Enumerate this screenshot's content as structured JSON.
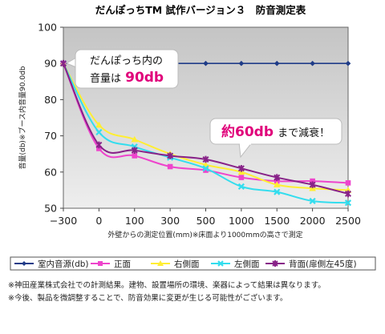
{
  "chart_data": {
    "type": "line",
    "title": "だんぽっちTM 試作バージョン３　防音測定表",
    "xlabel": "外壁からの測定位置(mm)※床面より1000mmの高さで測定",
    "ylabel": "音量(db)※ブース内音量90.0db",
    "categories": [
      "−300",
      "0",
      "100",
      "300",
      "500",
      "1000",
      "1500",
      "2000",
      "2500"
    ],
    "ylim": [
      50,
      100
    ],
    "yticks": [
      "50",
      "60",
      "70",
      "80",
      "90",
      "100"
    ],
    "grid": false,
    "legend_position": "bottom",
    "series": [
      {
        "name": "室内音源(db)",
        "color": "#1f3c88",
        "marker": "diamond",
        "values": [
          90,
          90,
          90,
          90,
          90,
          90,
          90,
          90,
          90
        ]
      },
      {
        "name": "正面",
        "color": "#ee44cc",
        "marker": "square",
        "values": [
          90,
          66.5,
          64.5,
          61.5,
          60.5,
          58.5,
          57.5,
          57.5,
          57
        ]
      },
      {
        "name": "右側面",
        "color": "#ffee33",
        "marker": "triangle",
        "values": [
          90,
          73,
          69,
          65,
          62,
          60,
          56.5,
          55.5,
          55
        ]
      },
      {
        "name": "左側面",
        "color": "#33ddee",
        "marker": "x",
        "values": [
          90,
          71,
          67,
          64,
          61,
          56,
          54.5,
          52,
          51.5
        ]
      },
      {
        "name": "背面(扉側左45度)",
        "color": "#882288",
        "marker": "star",
        "values": [
          90,
          67.5,
          66,
          64.5,
          63.5,
          61,
          58.5,
          56.5,
          54
        ]
      }
    ],
    "annotations": [
      {
        "line1": "だんぽっち内の",
        "line2_prefix": "音量は",
        "line2_big": "90db"
      },
      {
        "big": "約60db",
        "suffix": "まで減衰！"
      }
    ]
  },
  "notes": [
    "※神田産業株式会社での計測結果。建物、設置場所の環境、楽器によって結果は異なります。",
    "※今後、製品を微調整することで、防音効果に変更が生じる可能性がございます。"
  ]
}
